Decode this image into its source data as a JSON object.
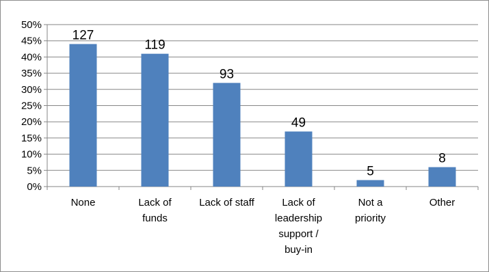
{
  "chart_data": {
    "type": "bar",
    "categories": [
      [
        "None"
      ],
      [
        "Lack of",
        "funds"
      ],
      [
        "Lack of staff"
      ],
      [
        "Lack of",
        "leadership",
        "support /",
        "buy-in"
      ],
      [
        "Not a",
        "priority"
      ],
      [
        "Other"
      ]
    ],
    "values": [
      0.44,
      0.41,
      0.32,
      0.17,
      0.02,
      0.06
    ],
    "data_labels": [
      "127",
      "119",
      "93",
      "49",
      "5",
      "8"
    ],
    "y_tick_labels": [
      "0%",
      "5%",
      "10%",
      "15%",
      "20%",
      "25%",
      "30%",
      "35%",
      "40%",
      "45%",
      "50%"
    ],
    "ylim": [
      0,
      0.5
    ],
    "grid": true,
    "bar_color": "#4f81bd",
    "grid_color": "#868686",
    "title": "",
    "xlabel": "",
    "ylabel": ""
  }
}
